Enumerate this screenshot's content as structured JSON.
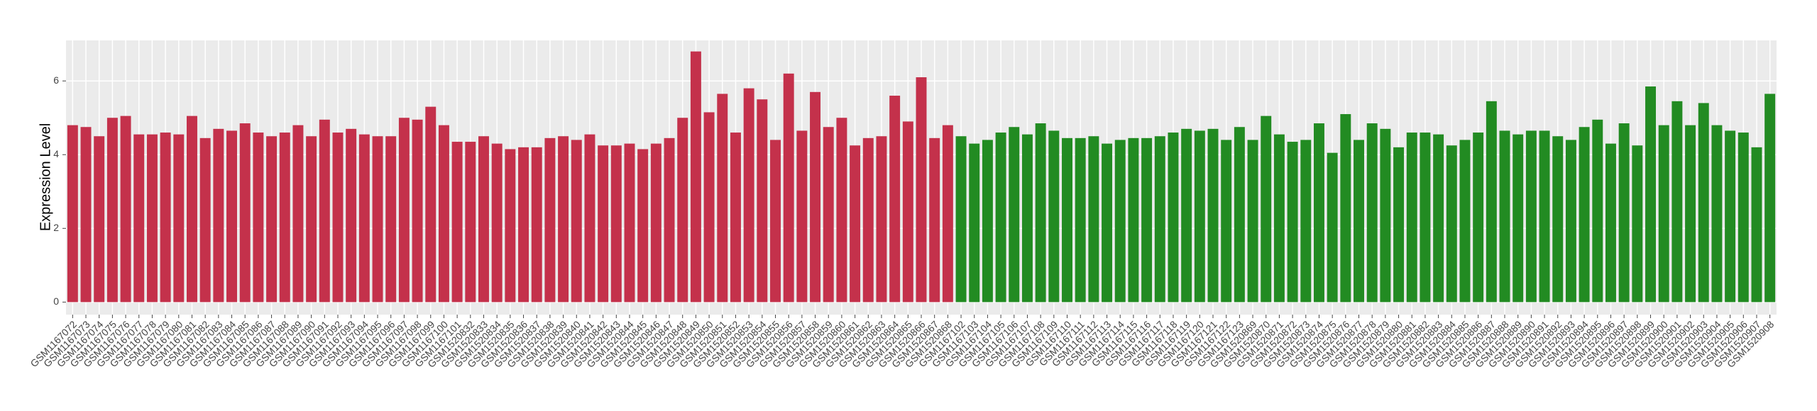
{
  "chart_data": {
    "type": "bar",
    "ylabel": "Expression Level",
    "categories": [
      "GSM1167072",
      "GSM1167073",
      "GSM1167074",
      "GSM1167075",
      "GSM1167076",
      "GSM1167077",
      "GSM1167078",
      "GSM1167079",
      "GSM1167080",
      "GSM1167081",
      "GSM1167082",
      "GSM1167083",
      "GSM1167084",
      "GSM1167085",
      "GSM1167086",
      "GSM1167087",
      "GSM1167088",
      "GSM1167089",
      "GSM1167090",
      "GSM1167091",
      "GSM1167092",
      "GSM1167093",
      "GSM1167094",
      "GSM1167095",
      "GSM1167096",
      "GSM1167097",
      "GSM1167098",
      "GSM1167099",
      "GSM1167100",
      "GSM1167101",
      "GSM1520832",
      "GSM1520833",
      "GSM1520834",
      "GSM1520835",
      "GSM1520836",
      "GSM1520837",
      "GSM1520838",
      "GSM1520839",
      "GSM1520840",
      "GSM1520841",
      "GSM1520842",
      "GSM1520843",
      "GSM1520844",
      "GSM1520845",
      "GSM1520846",
      "GSM1520847",
      "GSM1520848",
      "GSM1520849",
      "GSM1520850",
      "GSM1520851",
      "GSM1520852",
      "GSM1520853",
      "GSM1520854",
      "GSM1520855",
      "GSM1520856",
      "GSM1520857",
      "GSM1520858",
      "GSM1520859",
      "GSM1520860",
      "GSM1520861",
      "GSM1520862",
      "GSM1520863",
      "GSM1520864",
      "GSM1520865",
      "GSM1520866",
      "GSM1520867",
      "GSM1520868",
      "GSM1167102",
      "GSM1167103",
      "GSM1167104",
      "GSM1167105",
      "GSM1167106",
      "GSM1167107",
      "GSM1167108",
      "GSM1167109",
      "GSM1167110",
      "GSM1167111",
      "GSM1167112",
      "GSM1167113",
      "GSM1167114",
      "GSM1167115",
      "GSM1167116",
      "GSM1167117",
      "GSM1167118",
      "GSM1167119",
      "GSM1167120",
      "GSM1167121",
      "GSM1167122",
      "GSM1167123",
      "GSM1520869",
      "GSM1520870",
      "GSM1520871",
      "GSM1520872",
      "GSM1520873",
      "GSM1520874",
      "GSM1520875",
      "GSM1520876",
      "GSM1520877",
      "GSM1520878",
      "GSM1520879",
      "GSM1520880",
      "GSM1520881",
      "GSM1520882",
      "GSM1520883",
      "GSM1520884",
      "GSM1520885",
      "GSM1520886",
      "GSM1520887",
      "GSM1520888",
      "GSM1520889",
      "GSM1520890",
      "GSM1520891",
      "GSM1520892",
      "GSM1520893",
      "GSM1520894",
      "GSM1520895",
      "GSM1520896",
      "GSM1520897",
      "GSM1520898",
      "GSM1520899",
      "GSM1520900",
      "GSM1520901",
      "GSM1520902",
      "GSM1520903",
      "GSM1520904",
      "GSM1520905",
      "GSM1520906",
      "GSM1520907",
      "GSM1520908"
    ],
    "values": [
      4.8,
      4.75,
      4.5,
      5.0,
      5.05,
      4.55,
      4.55,
      4.6,
      4.55,
      5.05,
      4.45,
      4.7,
      4.65,
      4.85,
      4.6,
      4.5,
      4.6,
      4.8,
      4.5,
      4.95,
      4.6,
      4.7,
      4.55,
      4.5,
      4.5,
      5.0,
      4.95,
      5.3,
      4.8,
      4.35,
      4.35,
      4.5,
      4.3,
      4.15,
      4.2,
      4.2,
      4.45,
      4.5,
      4.4,
      4.55,
      4.25,
      4.25,
      4.3,
      4.15,
      4.3,
      4.45,
      5.0,
      6.8,
      5.15,
      5.65,
      4.6,
      5.8,
      5.5,
      4.4,
      6.2,
      4.65,
      5.7,
      4.75,
      5.0,
      4.25,
      4.45,
      4.5,
      5.6,
      4.9,
      6.1,
      4.45,
      4.8,
      4.5,
      4.3,
      4.4,
      4.6,
      4.75,
      4.55,
      4.85,
      4.65,
      4.45,
      4.45,
      4.5,
      4.3,
      4.4,
      4.45,
      4.45,
      4.5,
      4.6,
      4.7,
      4.65,
      4.7,
      4.4,
      4.75,
      4.4,
      5.05,
      4.55,
      4.35,
      4.4,
      4.85,
      4.05,
      5.1,
      4.4,
      4.85,
      4.7,
      4.2,
      4.6,
      4.6,
      4.55,
      4.25,
      4.4,
      4.6,
      5.45,
      4.65,
      4.55,
      4.65,
      4.65,
      4.5,
      4.4,
      4.75,
      4.95,
      4.3,
      4.85,
      4.25,
      5.85,
      4.8,
      5.45,
      4.8,
      5.4,
      4.8,
      4.65,
      4.6,
      4.2,
      5.65
    ],
    "colors": [
      "#c4314b",
      "#c4314b",
      "#c4314b",
      "#c4314b",
      "#c4314b",
      "#c4314b",
      "#c4314b",
      "#c4314b",
      "#c4314b",
      "#c4314b",
      "#c4314b",
      "#c4314b",
      "#c4314b",
      "#c4314b",
      "#c4314b",
      "#c4314b",
      "#c4314b",
      "#c4314b",
      "#c4314b",
      "#c4314b",
      "#c4314b",
      "#c4314b",
      "#c4314b",
      "#c4314b",
      "#c4314b",
      "#c4314b",
      "#c4314b",
      "#c4314b",
      "#c4314b",
      "#c4314b",
      "#c4314b",
      "#c4314b",
      "#c4314b",
      "#c4314b",
      "#c4314b",
      "#c4314b",
      "#c4314b",
      "#c4314b",
      "#c4314b",
      "#c4314b",
      "#c4314b",
      "#c4314b",
      "#c4314b",
      "#c4314b",
      "#c4314b",
      "#c4314b",
      "#c4314b",
      "#c4314b",
      "#c4314b",
      "#c4314b",
      "#c4314b",
      "#c4314b",
      "#c4314b",
      "#c4314b",
      "#c4314b",
      "#c4314b",
      "#c4314b",
      "#c4314b",
      "#c4314b",
      "#c4314b",
      "#c4314b",
      "#c4314b",
      "#c4314b",
      "#c4314b",
      "#c4314b",
      "#c4314b",
      "#c4314b",
      "#228b22",
      "#228b22",
      "#228b22",
      "#228b22",
      "#228b22",
      "#228b22",
      "#228b22",
      "#228b22",
      "#228b22",
      "#228b22",
      "#228b22",
      "#228b22",
      "#228b22",
      "#228b22",
      "#228b22",
      "#228b22",
      "#228b22",
      "#228b22",
      "#228b22",
      "#228b22",
      "#228b22",
      "#228b22",
      "#228b22",
      "#228b22",
      "#228b22",
      "#228b22",
      "#228b22",
      "#228b22",
      "#228b22",
      "#228b22",
      "#228b22",
      "#228b22",
      "#228b22",
      "#228b22",
      "#228b22",
      "#228b22",
      "#228b22",
      "#228b22",
      "#228b22",
      "#228b22",
      "#228b22",
      "#228b22",
      "#228b22",
      "#228b22",
      "#228b22",
      "#228b22",
      "#228b22",
      "#228b22",
      "#228b22",
      "#228b22",
      "#228b22",
      "#228b22",
      "#228b22",
      "#228b22",
      "#228b22",
      "#228b22",
      "#228b22",
      "#228b22",
      "#228b22",
      "#228b22",
      "#228b22",
      "#228b22"
    ],
    "ylim": [
      -0.34,
      7.1
    ],
    "yticks": [
      0,
      2,
      4,
      6
    ],
    "grid": true
  }
}
